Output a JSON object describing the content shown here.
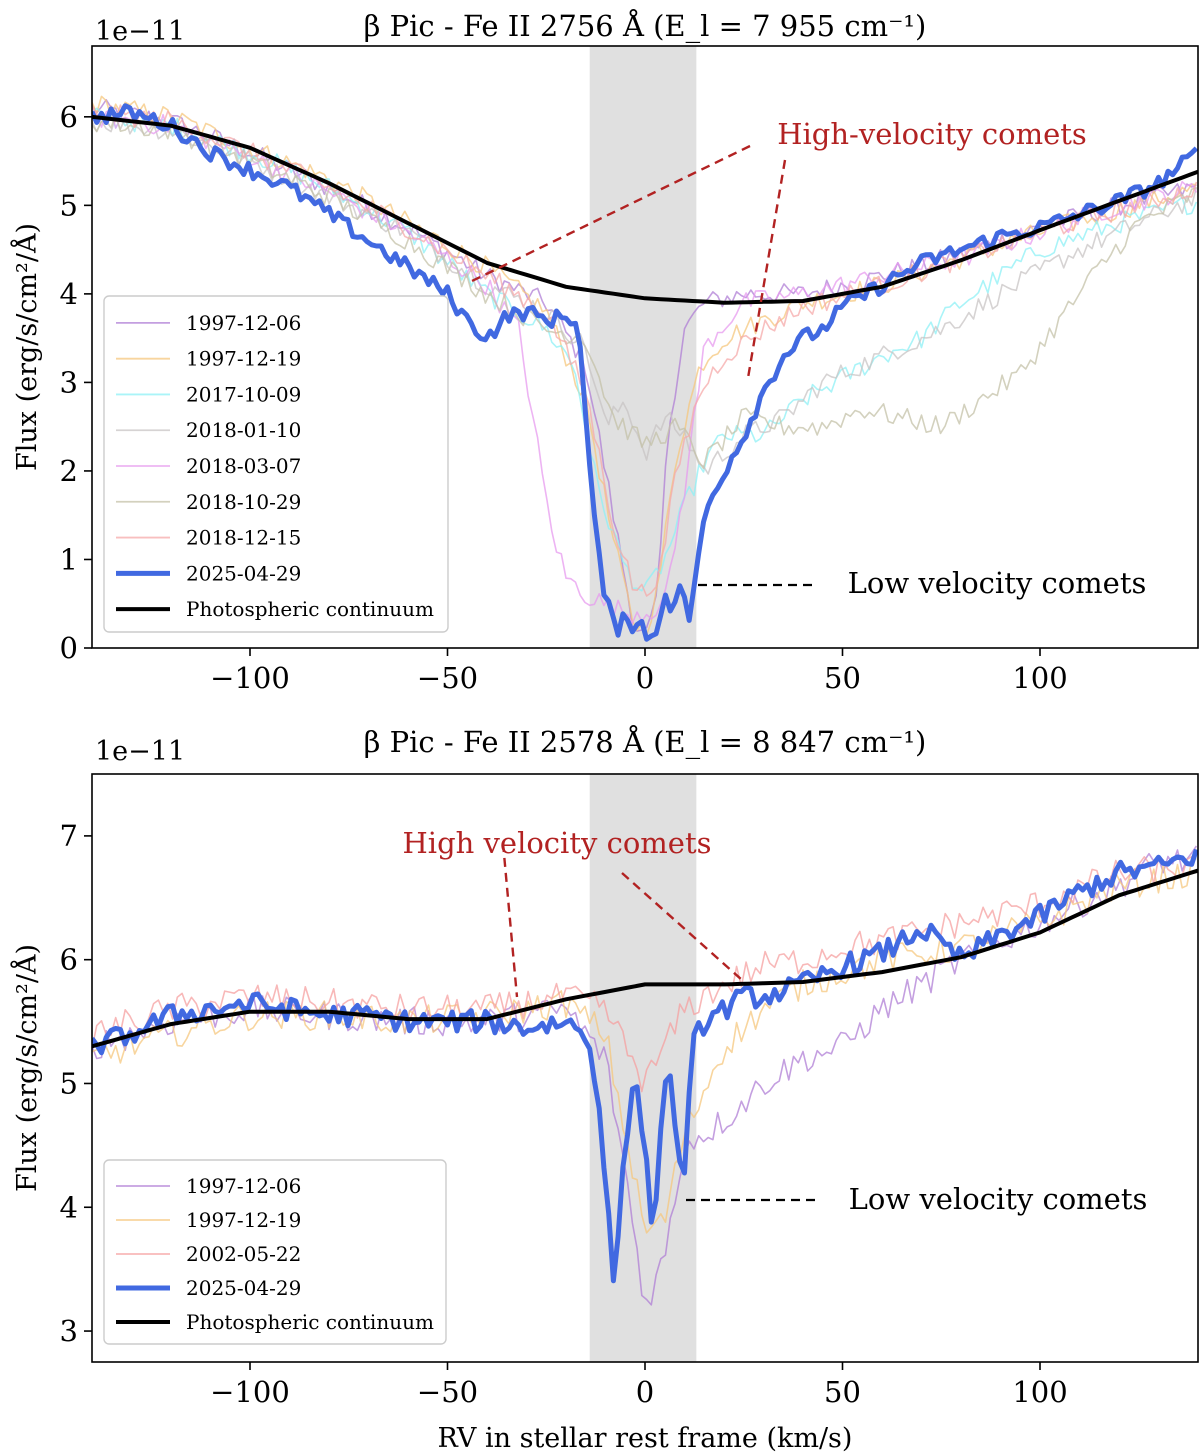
{
  "chart_data": [
    {
      "type": "line",
      "title": "β Pic - Fe II 2756 Å  (E_l = 7 955 cm⁻¹)",
      "offset_label": "1e−11",
      "xlabel": "",
      "ylabel": "Flux (erg/s/cm²/Å)",
      "xlim": [
        -140,
        140
      ],
      "ylim": [
        0,
        6.8
      ],
      "xticks": [
        -100,
        -50,
        0,
        50,
        100
      ],
      "xtick_labels": [
        "−100",
        "−50",
        "0",
        "50",
        "100"
      ],
      "yticks": [
        0,
        1,
        2,
        3,
        4,
        5,
        6
      ],
      "yticks_labels": [
        "0",
        "1",
        "2",
        "3",
        "4",
        "5",
        "6"
      ],
      "shaded_band": [
        -14,
        13
      ],
      "annotations": {
        "high": "High-velocity comets",
        "low": "Low velocity comets"
      },
      "legend": [
        "1997-12-06",
        "1997-12-19",
        "2017-10-09",
        "2018-01-10",
        "2018-03-07",
        "2018-10-29",
        "2018-12-15",
        "2025-04-29",
        "Photospheric continuum"
      ],
      "continuum": {
        "name": "Photospheric continuum",
        "x": [
          -140,
          -120,
          -100,
          -80,
          -60,
          -40,
          -20,
          0,
          20,
          40,
          60,
          80,
          100,
          120,
          140
        ],
        "y": [
          6.0,
          5.9,
          5.65,
          5.25,
          4.8,
          4.35,
          4.08,
          3.95,
          3.9,
          3.92,
          4.08,
          4.38,
          4.72,
          5.05,
          5.38
        ]
      },
      "series": [
        {
          "name": "1997-12-06",
          "color": "#b07fd6",
          "x": [
            -140,
            -120,
            -100,
            -80,
            -60,
            -40,
            -25,
            -15,
            -8,
            -3,
            0,
            3,
            6,
            10,
            15,
            25,
            40,
            60,
            80,
            100,
            120,
            140
          ],
          "y": [
            6.1,
            5.95,
            5.6,
            5.2,
            4.75,
            4.2,
            3.9,
            3.2,
            1.5,
            0.3,
            0.1,
            0.5,
            2.5,
            3.6,
            3.9,
            4.0,
            4.0,
            4.2,
            4.45,
            4.75,
            5.0,
            5.2
          ]
        },
        {
          "name": "1997-12-19",
          "color": "#f5c77e",
          "x": [
            -140,
            -120,
            -100,
            -80,
            -60,
            -40,
            -25,
            -15,
            -8,
            -3,
            0,
            3,
            8,
            14,
            20,
            30,
            40,
            60,
            80,
            100,
            120,
            140
          ],
          "y": [
            6.15,
            6.0,
            5.65,
            5.3,
            4.8,
            4.3,
            3.8,
            2.8,
            1.2,
            0.3,
            0.2,
            0.6,
            2.2,
            3.2,
            3.5,
            3.7,
            3.9,
            4.1,
            4.4,
            4.7,
            4.95,
            5.2
          ]
        },
        {
          "name": "2017-10-09",
          "color": "#8ef0f5",
          "x": [
            -140,
            -120,
            -100,
            -80,
            -60,
            -40,
            -25,
            -18,
            -12,
            -5,
            0,
            5,
            10,
            15,
            20,
            30,
            40,
            60,
            70,
            80,
            100,
            120,
            140
          ],
          "y": [
            6.0,
            5.9,
            5.6,
            5.2,
            4.7,
            4.0,
            3.6,
            3.2,
            1.8,
            0.9,
            0.6,
            1.0,
            1.6,
            2.1,
            2.4,
            2.4,
            2.8,
            3.3,
            3.5,
            3.9,
            4.5,
            4.8,
            5.05
          ]
        },
        {
          "name": "2018-01-10",
          "color": "#c8c4c4",
          "x": [
            -140,
            -120,
            -100,
            -80,
            -60,
            -40,
            -25,
            -15,
            -10,
            -5,
            0,
            5,
            10,
            15,
            25,
            35,
            45,
            60,
            75,
            90,
            110,
            125,
            140
          ],
          "y": [
            5.95,
            5.85,
            5.5,
            5.1,
            4.7,
            4.1,
            3.8,
            3.4,
            2.5,
            2.8,
            2.2,
            2.6,
            2.4,
            2.0,
            2.4,
            2.6,
            3.0,
            3.3,
            3.6,
            4.0,
            4.5,
            4.8,
            5.1
          ]
        },
        {
          "name": "2018-03-07",
          "color": "#e79bef",
          "x": [
            -140,
            -120,
            -100,
            -80,
            -60,
            -40,
            -32,
            -28,
            -24,
            -20,
            -15,
            -10,
            -5,
            0,
            5,
            10,
            15,
            25,
            40,
            60,
            80,
            100,
            120,
            140
          ],
          "y": [
            6.0,
            5.9,
            5.55,
            5.15,
            4.7,
            4.1,
            3.6,
            2.5,
            1.4,
            0.8,
            0.6,
            0.5,
            0.4,
            0.4,
            0.5,
            1.8,
            3.4,
            3.9,
            4.0,
            4.2,
            4.4,
            4.7,
            5.0,
            5.2
          ]
        },
        {
          "name": "2018-10-29",
          "color": "#c4c2a8",
          "x": [
            -140,
            -120,
            -100,
            -80,
            -60,
            -40,
            -25,
            -15,
            -8,
            0,
            8,
            15,
            25,
            35,
            45,
            55,
            65,
            75,
            85,
            95,
            105,
            115,
            125,
            140
          ],
          "y": [
            5.95,
            5.85,
            5.5,
            5.1,
            4.6,
            4.0,
            3.6,
            3.5,
            2.6,
            2.3,
            2.5,
            2.1,
            2.6,
            2.5,
            2.5,
            2.7,
            2.6,
            2.5,
            2.8,
            3.1,
            3.7,
            4.3,
            4.8,
            5.15
          ]
        },
        {
          "name": "2018-12-15",
          "color": "#f5a9a9",
          "x": [
            -140,
            -120,
            -100,
            -80,
            -60,
            -40,
            -25,
            -15,
            -8,
            -3,
            0,
            4,
            8,
            14,
            20,
            30,
            40,
            60,
            80,
            100,
            120,
            140
          ],
          "y": [
            6.05,
            5.95,
            5.6,
            5.2,
            4.75,
            4.2,
            3.8,
            2.9,
            1.4,
            0.7,
            0.6,
            0.9,
            2.0,
            2.9,
            3.3,
            3.6,
            3.85,
            4.1,
            4.4,
            4.7,
            4.95,
            5.2
          ]
        },
        {
          "name": "2025-04-29",
          "color": "#4169e1",
          "bold": true,
          "x": [
            -140,
            -130,
            -120,
            -110,
            -100,
            -90,
            -80,
            -70,
            -60,
            -50,
            -45,
            -40,
            -35,
            -30,
            -25,
            -20,
            -17,
            -15,
            -13,
            -11,
            -9,
            -7,
            -5,
            -3,
            -1,
            1,
            3,
            5,
            7,
            9,
            11,
            13,
            15,
            20,
            25,
            30,
            35,
            40,
            45,
            50,
            60,
            70,
            80,
            90,
            100,
            110,
            120,
            130,
            140
          ],
          "y": [
            6.0,
            6.05,
            5.9,
            5.6,
            5.4,
            5.2,
            4.9,
            4.6,
            4.3,
            4.0,
            3.7,
            3.5,
            3.75,
            3.8,
            3.7,
            3.75,
            3.7,
            2.6,
            1.5,
            0.8,
            0.4,
            0.2,
            0.5,
            0.15,
            0.3,
            0.1,
            0.2,
            0.7,
            0.3,
            0.8,
            0.3,
            0.8,
            1.5,
            2.0,
            2.4,
            2.9,
            3.3,
            3.5,
            3.6,
            3.85,
            4.1,
            4.35,
            4.5,
            4.65,
            4.75,
            4.9,
            5.05,
            5.25,
            5.6
          ]
        }
      ]
    },
    {
      "type": "line",
      "title": "β Pic - Fe II 2578 Å  (E_l = 8 847 cm⁻¹)",
      "offset_label": "1e−11",
      "xlabel": "RV in stellar rest frame (km/s)",
      "ylabel": "Flux (erg/s/cm²/Å)",
      "xlim": [
        -140,
        140
      ],
      "ylim": [
        2.75,
        7.5
      ],
      "xticks": [
        -100,
        -50,
        0,
        50,
        100
      ],
      "xtick_labels": [
        "−100",
        "−50",
        "0",
        "50",
        "100"
      ],
      "yticks": [
        3,
        4,
        5,
        6,
        7
      ],
      "yticks_labels": [
        "3",
        "4",
        "5",
        "6",
        "7"
      ],
      "shaded_band": [
        -14,
        13
      ],
      "annotations": {
        "high": "High velocity comets",
        "low": "Low velocity comets"
      },
      "legend": [
        "1997-12-06",
        "1997-12-19",
        "2002-05-22",
        "2025-04-29",
        "Photospheric continuum"
      ],
      "continuum": {
        "name": "Photospheric continuum",
        "x": [
          -140,
          -120,
          -100,
          -80,
          -60,
          -40,
          -20,
          0,
          20,
          40,
          60,
          80,
          100,
          120,
          140
        ],
        "y": [
          5.3,
          5.48,
          5.58,
          5.58,
          5.52,
          5.52,
          5.68,
          5.8,
          5.8,
          5.82,
          5.9,
          6.02,
          6.22,
          6.52,
          6.72
        ]
      },
      "series": [
        {
          "name": "1997-12-06",
          "color": "#b07fd6",
          "x": [
            -140,
            -120,
            -100,
            -80,
            -60,
            -40,
            -20,
            -10,
            -5,
            0,
            5,
            10,
            20,
            30,
            40,
            50,
            60,
            70,
            80,
            100,
            120,
            130,
            140
          ],
          "y": [
            5.3,
            5.5,
            5.6,
            5.55,
            5.5,
            5.5,
            5.6,
            5.2,
            4.3,
            3.2,
            3.6,
            4.5,
            4.7,
            5.0,
            5.2,
            5.3,
            5.6,
            5.8,
            6.0,
            6.3,
            6.6,
            6.8,
            6.8
          ]
        },
        {
          "name": "1997-12-19",
          "color": "#f5c77e",
          "x": [
            -140,
            -120,
            -100,
            -80,
            -60,
            -40,
            -20,
            -10,
            -5,
            0,
            5,
            10,
            20,
            30,
            40,
            50,
            60,
            80,
            100,
            120,
            140
          ],
          "y": [
            5.2,
            5.4,
            5.55,
            5.55,
            5.5,
            5.55,
            5.65,
            5.4,
            4.6,
            3.8,
            3.9,
            4.6,
            5.3,
            5.6,
            5.8,
            5.9,
            6.0,
            6.1,
            6.3,
            6.6,
            6.7
          ]
        },
        {
          "name": "2002-05-22",
          "color": "#f5a0a0",
          "x": [
            -140,
            -120,
            -100,
            -80,
            -60,
            -40,
            -20,
            -10,
            -5,
            0,
            5,
            10,
            20,
            30,
            40,
            50,
            60,
            80,
            100,
            120,
            140
          ],
          "y": [
            5.4,
            5.6,
            5.7,
            5.65,
            5.6,
            5.6,
            5.7,
            5.6,
            5.3,
            5.0,
            5.3,
            5.6,
            5.8,
            5.95,
            6.0,
            6.1,
            6.15,
            6.3,
            6.45,
            6.7,
            6.75
          ]
        },
        {
          "name": "2025-04-29",
          "color": "#4169e1",
          "bold": true,
          "x": [
            -140,
            -130,
            -120,
            -110,
            -100,
            -90,
            -80,
            -70,
            -60,
            -50,
            -40,
            -30,
            -20,
            -15,
            -12,
            -10,
            -8,
            -6,
            -4,
            -2,
            0,
            2,
            4,
            6,
            8,
            10,
            12,
            15,
            20,
            25,
            30,
            40,
            50,
            60,
            70,
            80,
            90,
            100,
            110,
            120,
            130,
            140
          ],
          "y": [
            5.3,
            5.4,
            5.55,
            5.6,
            5.65,
            5.6,
            5.55,
            5.55,
            5.5,
            5.5,
            5.5,
            5.45,
            5.5,
            5.4,
            5.0,
            4.2,
            3.4,
            4.1,
            4.8,
            5.0,
            4.5,
            3.7,
            4.7,
            5.1,
            4.6,
            4.2,
            5.3,
            5.5,
            5.6,
            5.7,
            5.7,
            5.8,
            5.95,
            6.05,
            6.25,
            6.0,
            6.2,
            6.35,
            6.55,
            6.7,
            6.75,
            6.85
          ]
        }
      ]
    }
  ]
}
